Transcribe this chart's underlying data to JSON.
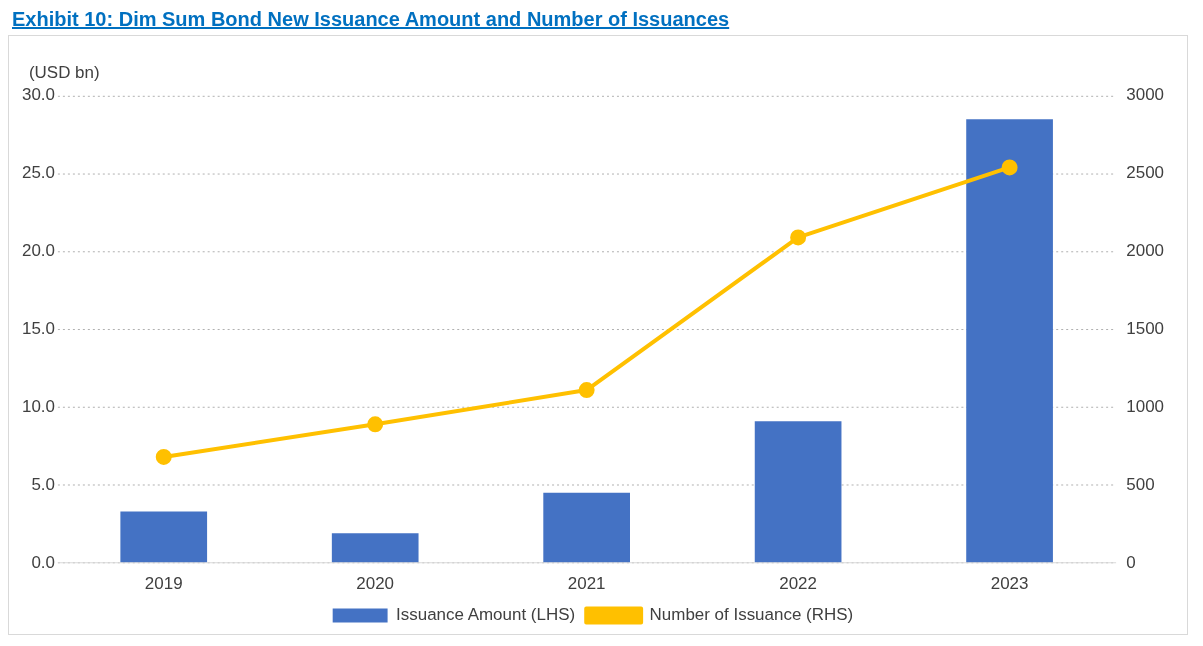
{
  "chart_data": {
    "type": "bar",
    "title": "Exhibit 10: Dim Sum Bond New Issuance Amount and Number of Issuances",
    "ylabel": "(USD bn)",
    "categories": [
      "2019",
      "2020",
      "2021",
      "2022",
      "2023"
    ],
    "series": [
      {
        "name": "Issuance Amount (LHS)",
        "color": "#4472c4",
        "values": [
          3.3,
          1.9,
          4.5,
          9.1,
          28.5
        ]
      },
      {
        "name": "Number of Issuance (RHS)",
        "type": "line",
        "axis": "y2",
        "color": "#ffc000",
        "values": [
          680,
          890,
          1110,
          2090,
          2540
        ]
      }
    ],
    "ylim": [
      0,
      30
    ],
    "yticks": [
      {
        "value": 0,
        "label": "0.0"
      },
      {
        "value": 5,
        "label": "5.0"
      },
      {
        "value": 10,
        "label": "10.0"
      },
      {
        "value": 15,
        "label": "15.0"
      },
      {
        "value": 20,
        "label": "20.0"
      },
      {
        "value": 25,
        "label": "25.0"
      },
      {
        "value": 30,
        "label": "30.0"
      }
    ],
    "y2lim": [
      0,
      3000
    ],
    "y2ticks": [
      0,
      500,
      1000,
      1500,
      2000,
      2500,
      3000
    ],
    "grid": "y",
    "legend": "bottom",
    "marker": "circle",
    "line_style": "solid"
  }
}
